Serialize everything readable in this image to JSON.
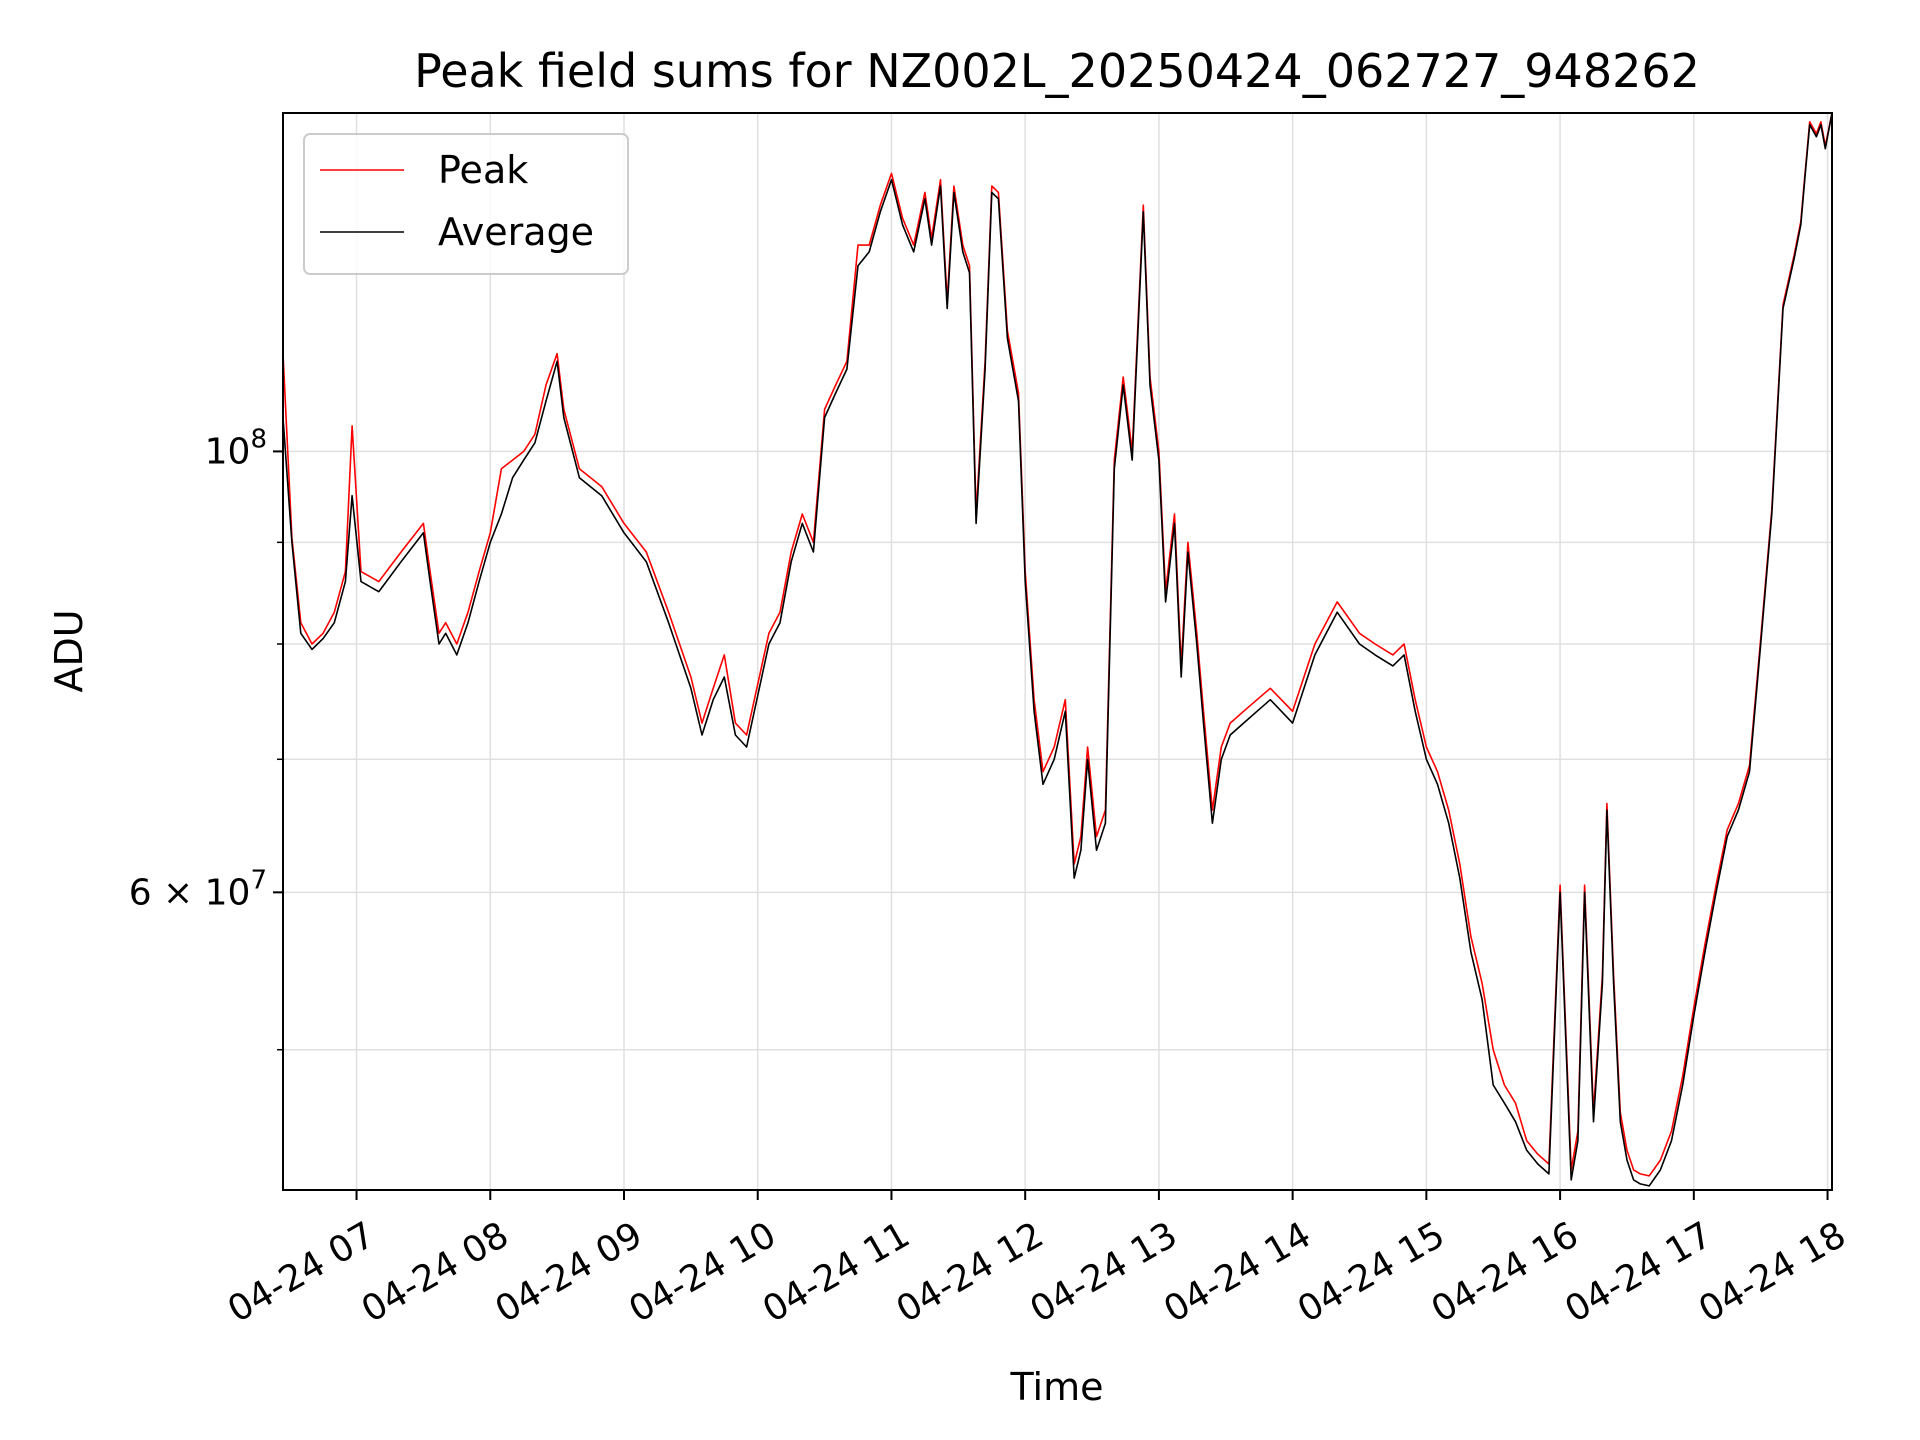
{
  "chart_data": {
    "type": "line",
    "title": "Peak field sums for NZ002L_20250424_062727_948262",
    "xlabel": "Time",
    "ylabel": "ADU",
    "yscale": "log",
    "grid": true,
    "legend_position": "top-left",
    "xlim": [
      "2025-04-24 06:27",
      "2025-04-24 18:02"
    ],
    "ylim": [
      42500000,
      148000000
    ],
    "x_ticks": [
      {
        "value": "2025-04-24 07:00",
        "label": "04-24 07"
      },
      {
        "value": "2025-04-24 08:00",
        "label": "04-24 08"
      },
      {
        "value": "2025-04-24 09:00",
        "label": "04-24 09"
      },
      {
        "value": "2025-04-24 10:00",
        "label": "04-24 10"
      },
      {
        "value": "2025-04-24 11:00",
        "label": "04-24 11"
      },
      {
        "value": "2025-04-24 12:00",
        "label": "04-24 12"
      },
      {
        "value": "2025-04-24 13:00",
        "label": "04-24 13"
      },
      {
        "value": "2025-04-24 14:00",
        "label": "04-24 14"
      },
      {
        "value": "2025-04-24 15:00",
        "label": "04-24 15"
      },
      {
        "value": "2025-04-24 16:00",
        "label": "04-24 16"
      },
      {
        "value": "2025-04-24 17:00",
        "label": "04-24 17"
      },
      {
        "value": "2025-04-24 18:00",
        "label": "04-24 18"
      }
    ],
    "y_ticks_major": [
      {
        "value": 60000000,
        "label_base": "6 × 10",
        "label_exp": "7"
      },
      {
        "value": 100000000,
        "label_base": "10",
        "label_exp": "8"
      }
    ],
    "y_ticks_minor": [
      50000000,
      70000000,
      80000000,
      90000000
    ],
    "x": [
      "2025-04-24 06:27",
      "2025-04-24 06:31",
      "2025-04-24 06:35",
      "2025-04-24 06:40",
      "2025-04-24 06:45",
      "2025-04-24 06:50",
      "2025-04-24 06:55",
      "2025-04-24 06:58",
      "2025-04-24 07:02",
      "2025-04-24 07:10",
      "2025-04-24 07:20",
      "2025-04-24 07:30",
      "2025-04-24 07:33",
      "2025-04-24 07:37",
      "2025-04-24 07:40",
      "2025-04-24 07:45",
      "2025-04-24 07:50",
      "2025-04-24 07:55",
      "2025-04-24 08:00",
      "2025-04-24 08:05",
      "2025-04-24 08:10",
      "2025-04-24 08:15",
      "2025-04-24 08:20",
      "2025-04-24 08:25",
      "2025-04-24 08:30",
      "2025-04-24 08:33",
      "2025-04-24 08:40",
      "2025-04-24 08:50",
      "2025-04-24 09:00",
      "2025-04-24 09:10",
      "2025-04-24 09:20",
      "2025-04-24 09:30",
      "2025-04-24 09:35",
      "2025-04-24 09:40",
      "2025-04-24 09:45",
      "2025-04-24 09:50",
      "2025-04-24 09:55",
      "2025-04-24 10:05",
      "2025-04-24 10:10",
      "2025-04-24 10:15",
      "2025-04-24 10:20",
      "2025-04-24 10:25",
      "2025-04-24 10:30",
      "2025-04-24 10:35",
      "2025-04-24 10:40",
      "2025-04-24 10:45",
      "2025-04-24 10:50",
      "2025-04-24 10:55",
      "2025-04-24 11:00",
      "2025-04-24 11:05",
      "2025-04-24 11:10",
      "2025-04-24 11:15",
      "2025-04-24 11:18",
      "2025-04-24 11:22",
      "2025-04-24 11:25",
      "2025-04-24 11:28",
      "2025-04-24 11:32",
      "2025-04-24 11:35",
      "2025-04-24 11:38",
      "2025-04-24 11:42",
      "2025-04-24 11:45",
      "2025-04-24 11:48",
      "2025-04-24 11:52",
      "2025-04-24 11:57",
      "2025-04-24 12:00",
      "2025-04-24 12:04",
      "2025-04-24 12:08",
      "2025-04-24 12:13",
      "2025-04-24 12:18",
      "2025-04-24 12:22",
      "2025-04-24 12:25",
      "2025-04-24 12:28",
      "2025-04-24 12:32",
      "2025-04-24 12:36",
      "2025-04-24 12:40",
      "2025-04-24 12:44",
      "2025-04-24 12:48",
      "2025-04-24 12:53",
      "2025-04-24 12:56",
      "2025-04-24 13:00",
      "2025-04-24 13:03",
      "2025-04-24 13:07",
      "2025-04-24 13:10",
      "2025-04-24 13:13",
      "2025-04-24 13:17",
      "2025-04-24 13:20",
      "2025-04-24 13:24",
      "2025-04-24 13:28",
      "2025-04-24 13:32",
      "2025-04-24 13:38",
      "2025-04-24 13:44",
      "2025-04-24 13:50",
      "2025-04-24 14:00",
      "2025-04-24 14:10",
      "2025-04-24 14:20",
      "2025-04-24 14:30",
      "2025-04-24 14:37",
      "2025-04-24 14:45",
      "2025-04-24 14:50",
      "2025-04-24 14:55",
      "2025-04-24 15:00",
      "2025-04-24 15:05",
      "2025-04-24 15:10",
      "2025-04-24 15:15",
      "2025-04-24 15:20",
      "2025-04-24 15:25",
      "2025-04-24 15:30",
      "2025-04-24 15:35",
      "2025-04-24 15:40",
      "2025-04-24 15:45",
      "2025-04-24 15:50",
      "2025-04-24 15:55",
      "2025-04-24 16:00",
      "2025-04-24 16:05",
      "2025-04-24 16:08",
      "2025-04-24 16:11",
      "2025-04-24 16:15",
      "2025-04-24 16:19",
      "2025-04-24 16:21",
      "2025-04-24 16:24",
      "2025-04-24 16:27",
      "2025-04-24 16:30",
      "2025-04-24 16:33",
      "2025-04-24 16:36",
      "2025-04-24 16:40",
      "2025-04-24 16:45",
      "2025-04-24 16:50",
      "2025-04-24 16:55",
      "2025-04-24 17:00",
      "2025-04-24 17:05",
      "2025-04-24 17:10",
      "2025-04-24 17:15",
      "2025-04-24 17:20",
      "2025-04-24 17:25",
      "2025-04-24 17:30",
      "2025-04-24 17:35",
      "2025-04-24 17:40",
      "2025-04-24 17:45",
      "2025-04-24 17:48",
      "2025-04-24 17:50",
      "2025-04-24 17:52",
      "2025-04-24 17:55",
      "2025-04-24 17:57",
      "2025-04-24 17:59",
      "2025-04-24 18:02"
    ],
    "series": [
      {
        "name": "Average",
        "color": "#000000",
        "values": [
          104000000,
          90000000,
          81000000,
          79500000,
          80500000,
          82000000,
          86000000,
          95000000,
          86000000,
          85000000,
          88000000,
          91000000,
          86000000,
          80000000,
          81000000,
          79000000,
          82000000,
          86000000,
          90000000,
          93000000,
          97000000,
          99000000,
          101000000,
          106000000,
          111000000,
          104000000,
          97000000,
          95000000,
          91000000,
          88000000,
          82000000,
          76000000,
          72000000,
          75000000,
          77000000,
          72000000,
          71000000,
          80000000,
          82000000,
          88000000,
          92000000,
          89000000,
          104000000,
          107000000,
          110000000,
          124000000,
          126000000,
          132000000,
          137000000,
          130000000,
          126000000,
          134000000,
          127000000,
          136000000,
          118000000,
          135000000,
          126000000,
          123000000,
          92000000,
          110000000,
          135000000,
          134000000,
          114000000,
          106000000,
          86000000,
          74000000,
          68000000,
          70000000,
          74000000,
          61000000,
          63000000,
          70000000,
          63000000,
          65000000,
          98000000,
          108000000,
          99000000,
          132000000,
          108000000,
          99000000,
          84000000,
          92000000,
          77000000,
          89000000,
          80000000,
          73000000,
          65000000,
          70000000,
          72000000,
          73000000,
          74000000,
          75000000,
          73000000,
          79000000,
          83000000,
          80000000,
          79000000,
          78000000,
          79000000,
          74000000,
          70000000,
          68000000,
          65000000,
          61000000,
          56000000,
          53000000,
          48000000,
          47000000,
          46000000,
          44500000,
          43800000,
          43300000,
          60000000,
          43000000,
          45000000,
          60000000,
          46000000,
          54000000,
          66000000,
          54000000,
          46000000,
          44000000,
          43000000,
          42800000,
          42700000,
          43500000,
          45000000,
          48000000,
          52000000,
          56000000,
          60000000,
          64000000,
          66000000,
          69000000,
          80000000,
          93000000,
          118000000,
          125000000,
          130000000,
          138000000,
          146000000,
          144000000,
          146000000,
          142000000,
          148000000
        ]
      },
      {
        "name": "Peak",
        "color": "#ff0000",
        "values": [
          112000000,
          90500000,
          82000000,
          80000000,
          81000000,
          83000000,
          87000000,
          103000000,
          87000000,
          86000000,
          89000000,
          92000000,
          87000000,
          81000000,
          82000000,
          80000000,
          83000000,
          87000000,
          91000000,
          98000000,
          99000000,
          100000000,
          102000000,
          108000000,
          112000000,
          105000000,
          98000000,
          96000000,
          92000000,
          89000000,
          83000000,
          77000000,
          73000000,
          76000000,
          79000000,
          73000000,
          72000000,
          81000000,
          83000000,
          89000000,
          93000000,
          90000000,
          105000000,
          108000000,
          111000000,
          127000000,
          127000000,
          133000000,
          138000000,
          131000000,
          127000000,
          135000000,
          128000000,
          137000000,
          119000000,
          136000000,
          127000000,
          124000000,
          93000000,
          111000000,
          136000000,
          135000000,
          115000000,
          107000000,
          87000000,
          75000000,
          69000000,
          71000000,
          75000000,
          62000000,
          64000000,
          71000000,
          64000000,
          66000000,
          99000000,
          109000000,
          100000000,
          133000000,
          109000000,
          100000000,
          85000000,
          93000000,
          78000000,
          90000000,
          81000000,
          74000000,
          66000000,
          71000000,
          73000000,
          74000000,
          75000000,
          76000000,
          74000000,
          80000000,
          84000000,
          81000000,
          80000000,
          79000000,
          80000000,
          75000000,
          71000000,
          69000000,
          66000000,
          62000000,
          57000000,
          54000000,
          50000000,
          48000000,
          47000000,
          45000000,
          44300000,
          43800000,
          60500000,
          43500000,
          45500000,
          60500000,
          46500000,
          54500000,
          66500000,
          54500000,
          46500000,
          44500000,
          43500000,
          43300000,
          43200000,
          44000000,
          45500000,
          48500000,
          52500000,
          56500000,
          60500000,
          64500000,
          66500000,
          69500000,
          80500000,
          93500000,
          118500000,
          125500000,
          130500000,
          138500000,
          146500000,
          144500000,
          146500000,
          142500000,
          148000000
        ]
      }
    ]
  }
}
